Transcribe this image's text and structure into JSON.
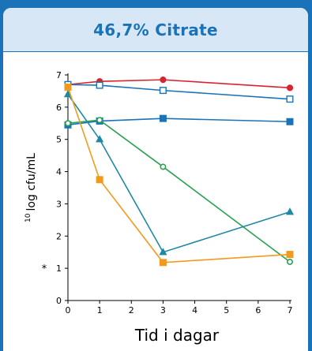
{
  "chart_data": {
    "type": "line",
    "title": "46,7% Citrate",
    "ylabel_superscript": "10",
    "ylabel": "log cfu/mL",
    "xlabel": "Tid i dagar",
    "x_ticks": [
      "0",
      "1",
      "2",
      "3",
      "4",
      "5",
      "6",
      "7"
    ],
    "y_ticks": [
      "0",
      "1",
      "2",
      "3",
      "4",
      "5",
      "6",
      "7"
    ],
    "detection_limit_marker": "*",
    "xlim": [
      0,
      7
    ],
    "ylim": [
      0,
      7
    ],
    "grid": false,
    "legend": "none",
    "series": [
      {
        "color": "#d9232f",
        "marker": "circle-filled",
        "points": [
          [
            0,
            6.7
          ],
          [
            1,
            6.8
          ],
          [
            3,
            6.85
          ],
          [
            7,
            6.6
          ]
        ]
      },
      {
        "color": "#1a73b9",
        "marker": "square-open",
        "points": [
          [
            0,
            6.7
          ],
          [
            1,
            6.68
          ],
          [
            3,
            6.52
          ],
          [
            7,
            6.25
          ]
        ]
      },
      {
        "color": "#1a73b9",
        "marker": "square-filled",
        "points": [
          [
            0,
            5.45
          ],
          [
            1,
            5.57
          ],
          [
            3,
            5.65
          ],
          [
            7,
            5.55
          ]
        ]
      },
      {
        "color": "#2aa14f",
        "marker": "circle-open",
        "points": [
          [
            0,
            5.5
          ],
          [
            1,
            5.6
          ],
          [
            3,
            4.15
          ],
          [
            7,
            1.2
          ]
        ]
      },
      {
        "color": "#1f88a3",
        "marker": "triangle-filled",
        "points": [
          [
            0,
            6.4
          ],
          [
            1,
            5.0
          ],
          [
            3,
            1.5
          ],
          [
            7,
            2.75
          ]
        ]
      },
      {
        "color": "#f39a1d",
        "marker": "square-filled",
        "points": [
          [
            0,
            6.62
          ],
          [
            1,
            3.75
          ],
          [
            3,
            1.18
          ],
          [
            7,
            1.43
          ]
        ]
      }
    ]
  }
}
